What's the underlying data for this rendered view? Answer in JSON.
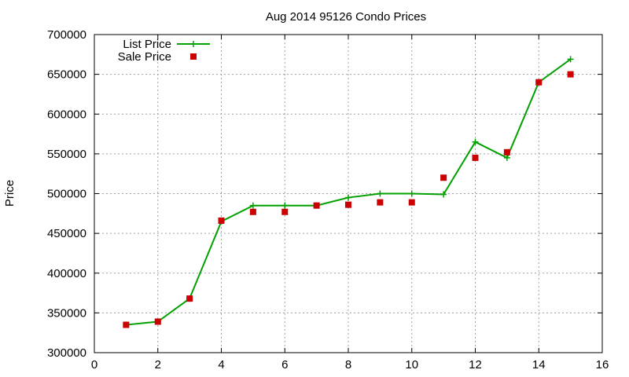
{
  "chart_data": {
    "type": "line",
    "title": "Aug 2014 95126 Condo Prices",
    "xlabel": "",
    "ylabel": "Price",
    "xlim": [
      0,
      16
    ],
    "ylim": [
      300000,
      700000
    ],
    "xticks": [
      0,
      2,
      4,
      6,
      8,
      10,
      12,
      14,
      16
    ],
    "yticks": [
      300000,
      350000,
      400000,
      450000,
      500000,
      550000,
      600000,
      650000,
      700000
    ],
    "grid": true,
    "legend_position": "top-left",
    "series": [
      {
        "name": "List Price",
        "style": "line-with-plus-markers",
        "color": "#00a000",
        "x": [
          1,
          2,
          3,
          4,
          5,
          6,
          7,
          8,
          9,
          10,
          11,
          12,
          13,
          14,
          15
        ],
        "y": [
          335000,
          339000,
          368000,
          465000,
          485000,
          485000,
          485000,
          495000,
          500000,
          500000,
          499000,
          565000,
          545000,
          640000,
          669000
        ]
      },
      {
        "name": "Sale Price",
        "style": "square-markers",
        "color": "#cc0000",
        "x": [
          1,
          2,
          3,
          4,
          5,
          6,
          7,
          8,
          9,
          10,
          11,
          12,
          13,
          14,
          15
        ],
        "y": [
          335000,
          339000,
          368000,
          466000,
          477000,
          477000,
          485000,
          486000,
          489000,
          489000,
          520000,
          545000,
          552000,
          640000,
          650000
        ]
      }
    ]
  }
}
